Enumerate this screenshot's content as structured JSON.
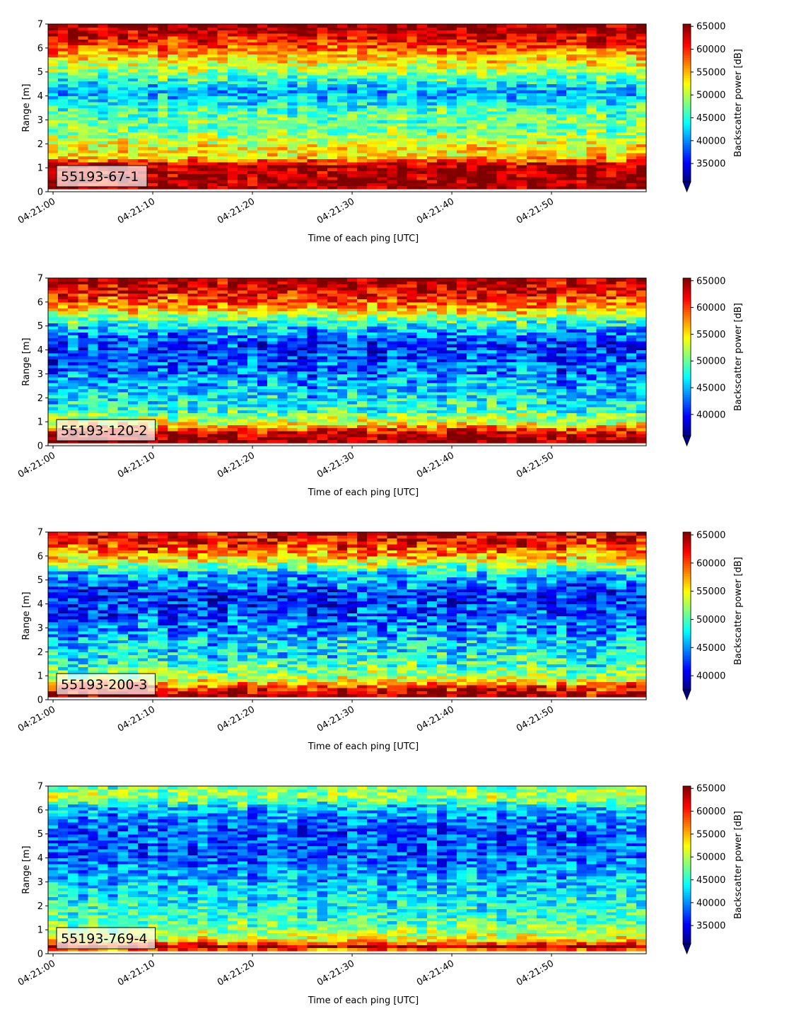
{
  "chart_data": [
    {
      "type": "heatmap",
      "label": "55193-67-1",
      "xlabel": "Time of each ping [UTC]",
      "ylabel": "Range [m]",
      "xticks": [
        "04:21:00",
        "04:21:10",
        "04:21:20",
        "04:21:30",
        "04:21:40",
        "04:21:50"
      ],
      "xrange": [
        "04:21:00",
        "04:21:59"
      ],
      "yticks": [
        0,
        1,
        2,
        3,
        4,
        5,
        6,
        7
      ],
      "ylim": [
        0,
        7
      ],
      "colorbar": {
        "label": "Backscatter power [dB]",
        "ticks": [
          35000,
          40000,
          45000,
          50000,
          55000,
          60000,
          65000
        ],
        "range": [
          31000,
          65500
        ]
      },
      "colormap": "jet",
      "profile": [
        {
          "range": 0.2,
          "value": 65000
        },
        {
          "range": 1.1,
          "value": 64000
        },
        {
          "range": 1.5,
          "value": 53000
        },
        {
          "range": 1.9,
          "value": 53000
        },
        {
          "range": 2.5,
          "value": 48000
        },
        {
          "range": 3.3,
          "value": 47000
        },
        {
          "range": 4.2,
          "value": 41000
        },
        {
          "range": 5.0,
          "value": 49000
        },
        {
          "range": 5.7,
          "value": 55000
        },
        {
          "range": 6.3,
          "value": 61000
        },
        {
          "range": 7.0,
          "value": 65000
        }
      ]
    },
    {
      "type": "heatmap",
      "label": "55193-120-2",
      "xlabel": "Time of each ping [UTC]",
      "ylabel": "Range [m]",
      "xticks": [
        "04:21:00",
        "04:21:10",
        "04:21:20",
        "04:21:30",
        "04:21:40",
        "04:21:50"
      ],
      "xrange": [
        "04:21:00",
        "04:21:59"
      ],
      "yticks": [
        0,
        1,
        2,
        3,
        4,
        5,
        6,
        7
      ],
      "ylim": [
        0,
        7
      ],
      "colorbar": {
        "label": "Backscatter power [dB]",
        "ticks": [
          40000,
          45000,
          50000,
          55000,
          60000,
          65000
        ],
        "range": [
          36000,
          65500
        ]
      },
      "colormap": "jet",
      "profile": [
        {
          "range": 0.2,
          "value": 65000
        },
        {
          "range": 0.5,
          "value": 64000
        },
        {
          "range": 0.9,
          "value": 55000
        },
        {
          "range": 1.5,
          "value": 48000
        },
        {
          "range": 2.5,
          "value": 45000
        },
        {
          "range": 3.5,
          "value": 42000
        },
        {
          "range": 4.3,
          "value": 41000
        },
        {
          "range": 5.1,
          "value": 47000
        },
        {
          "range": 5.8,
          "value": 57000
        },
        {
          "range": 6.4,
          "value": 62000
        },
        {
          "range": 7.0,
          "value": 65000
        }
      ]
    },
    {
      "type": "heatmap",
      "label": "55193-200-3",
      "xlabel": "Time of each ping [UTC]",
      "ylabel": "Range [m]",
      "xticks": [
        "04:21:00",
        "04:21:10",
        "04:21:20",
        "04:21:30",
        "04:21:40",
        "04:21:50"
      ],
      "xrange": [
        "04:21:00",
        "04:21:59"
      ],
      "yticks": [
        0,
        1,
        2,
        3,
        4,
        5,
        6,
        7
      ],
      "ylim": [
        0,
        7
      ],
      "colorbar": {
        "label": "Backscatter power [dB]",
        "ticks": [
          40000,
          45000,
          50000,
          55000,
          60000,
          65000
        ],
        "range": [
          37500,
          65500
        ]
      },
      "colormap": "jet",
      "profile": [
        {
          "range": 0.2,
          "value": 65000
        },
        {
          "range": 0.45,
          "value": 62000
        },
        {
          "range": 0.9,
          "value": 53000
        },
        {
          "range": 1.6,
          "value": 49000
        },
        {
          "range": 2.6,
          "value": 46000
        },
        {
          "range": 3.6,
          "value": 43000
        },
        {
          "range": 4.5,
          "value": 42000
        },
        {
          "range": 5.3,
          "value": 47000
        },
        {
          "range": 5.9,
          "value": 56000
        },
        {
          "range": 6.5,
          "value": 61000
        },
        {
          "range": 7.0,
          "value": 64000
        }
      ]
    },
    {
      "type": "heatmap",
      "label": "55193-769-4",
      "xlabel": "Time of each ping [UTC]",
      "ylabel": "Range [m]",
      "xticks": [
        "04:21:00",
        "04:21:10",
        "04:21:20",
        "04:21:30",
        "04:21:40",
        "04:21:50"
      ],
      "xrange": [
        "04:21:00",
        "04:21:59"
      ],
      "yticks": [
        0,
        1,
        2,
        3,
        4,
        5,
        6,
        7
      ],
      "ylim": [
        0,
        7
      ],
      "colorbar": {
        "label": "Backscatter power [dB]",
        "ticks": [
          35000,
          40000,
          45000,
          50000,
          55000,
          60000,
          65000
        ],
        "range": [
          31000,
          65500
        ]
      },
      "colormap": "jet",
      "profile": [
        {
          "range": 0.1,
          "value": 53000
        },
        {
          "range": 0.3,
          "value": 65000
        },
        {
          "range": 0.6,
          "value": 52000
        },
        {
          "range": 1.2,
          "value": 47000
        },
        {
          "range": 2.2,
          "value": 44000
        },
        {
          "range": 3.2,
          "value": 41000
        },
        {
          "range": 4.2,
          "value": 38000
        },
        {
          "range": 5.2,
          "value": 38000
        },
        {
          "range": 6.0,
          "value": 41000
        },
        {
          "range": 6.6,
          "value": 50000
        },
        {
          "range": 7.0,
          "value": 47000
        }
      ]
    }
  ]
}
